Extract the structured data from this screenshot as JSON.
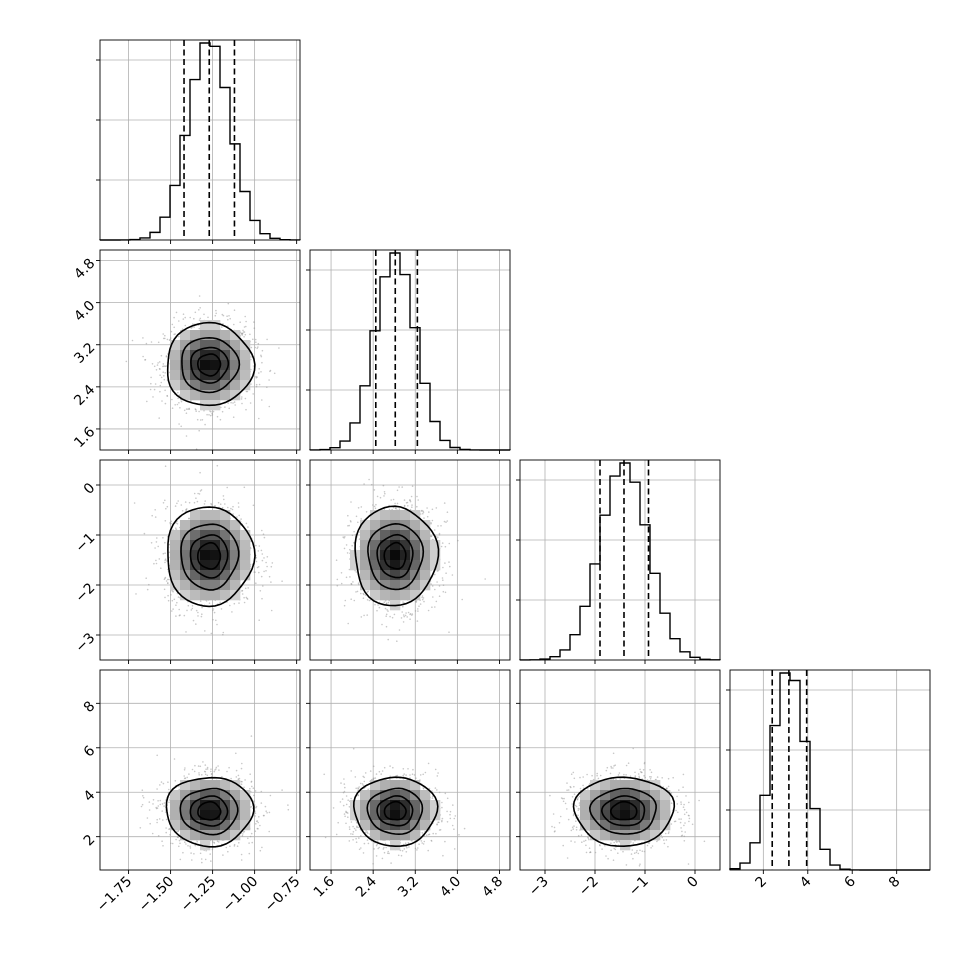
{
  "chart_data": {
    "type": "corner",
    "dims": [
      {
        "range": [
          -1.92,
          -0.73
        ],
        "mean": -1.27,
        "sd": 0.125,
        "quantiles": [
          -1.42,
          -1.27,
          -1.12
        ],
        "ticks": [
          "−1.75",
          "−1.50",
          "−1.25",
          "−1.00",
          "−0.75"
        ],
        "tick_values": [
          -1.75,
          -1.5,
          -1.25,
          -1.0,
          -0.75
        ]
      },
      {
        "range": [
          1.2,
          5.0
        ],
        "mean": 2.82,
        "sd": 0.38,
        "quantiles": [
          2.45,
          2.82,
          3.24
        ],
        "ticks": [
          "1.6",
          "2.4",
          "3.2",
          "4.0",
          "4.8"
        ],
        "tick_values": [
          1.6,
          2.4,
          3.2,
          4.0,
          4.8
        ]
      },
      {
        "range": [
          -3.5,
          0.5
        ],
        "mean": -1.42,
        "sd": 0.48,
        "quantiles": [
          -1.9,
          -1.42,
          -0.93
        ],
        "ticks": [
          "−3",
          "−2",
          "−1",
          "0"
        ],
        "tick_values": [
          -3,
          -2,
          -1,
          0
        ]
      },
      {
        "range": [
          0.5,
          9.5
        ],
        "mean": 3.15,
        "sd": 0.75,
        "quantiles": [
          2.4,
          3.15,
          3.95
        ],
        "ticks": [
          "2",
          "4",
          "6",
          "8"
        ],
        "tick_values": [
          2,
          4,
          6,
          8
        ]
      }
    ],
    "contour_levels_sigma": [
      0.5,
      1.0,
      1.5,
      2.0
    ],
    "grid": true,
    "histogram_bins": 20
  }
}
